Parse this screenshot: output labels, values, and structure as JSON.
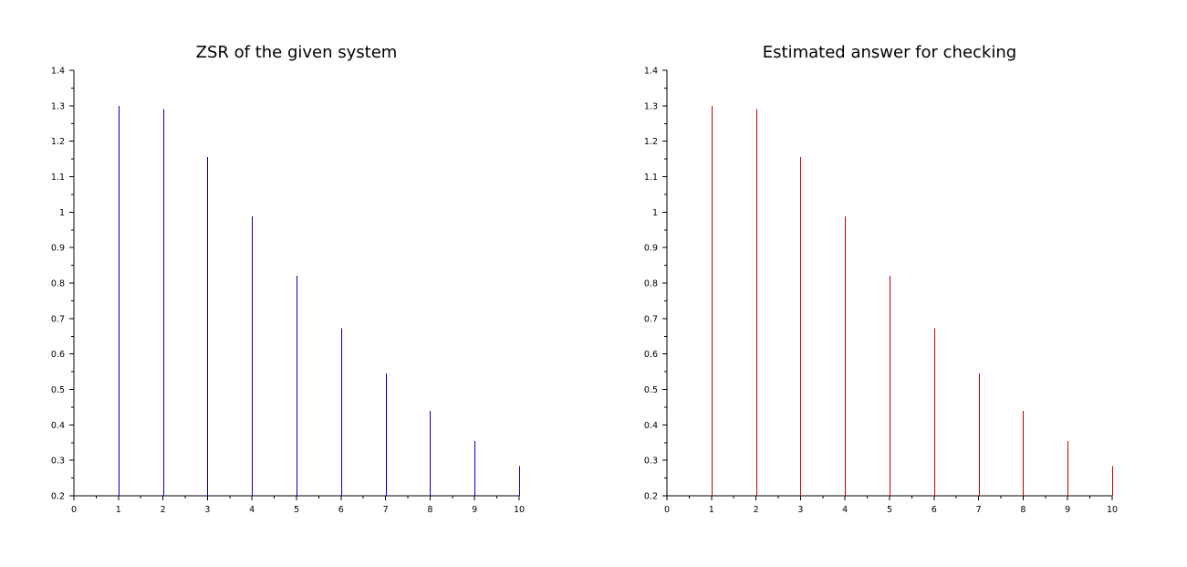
{
  "chart_data": [
    {
      "type": "stem",
      "title": "ZSR of the given system",
      "xlabel": "",
      "ylabel": "",
      "xlim": [
        0,
        10
      ],
      "ylim": [
        0.2,
        1.4
      ],
      "xticks": [
        "0",
        "1",
        "2",
        "3",
        "4",
        "5",
        "6",
        "7",
        "8",
        "9",
        "10"
      ],
      "yticks": [
        "0.2",
        "0.3",
        "0.4",
        "0.5",
        "0.6",
        "0.7",
        "0.8",
        "0.9",
        "1",
        "1.1",
        "1.2",
        "1.3",
        "1.4"
      ],
      "grid": false,
      "color": "#0000cc",
      "x": [
        1,
        2,
        3,
        4,
        5,
        6,
        7,
        8,
        9,
        10
      ],
      "values": [
        1.3,
        1.29,
        1.156,
        0.988,
        0.821,
        0.672,
        0.545,
        0.44,
        0.354,
        0.284
      ]
    },
    {
      "type": "stem",
      "title": "Estimated answer for checking",
      "xlabel": "",
      "ylabel": "",
      "xlim": [
        0,
        10
      ],
      "ylim": [
        0.2,
        1.4
      ],
      "xticks": [
        "0",
        "1",
        "2",
        "3",
        "4",
        "5",
        "6",
        "7",
        "8",
        "9",
        "10"
      ],
      "yticks": [
        "0.2",
        "0.3",
        "0.4",
        "0.5",
        "0.6",
        "0.7",
        "0.8",
        "0.9",
        "1",
        "1.1",
        "1.2",
        "1.3",
        "1.4"
      ],
      "grid": false,
      "color": "#cc0000",
      "x": [
        1,
        2,
        3,
        4,
        5,
        6,
        7,
        8,
        9,
        10
      ],
      "values": [
        1.3,
        1.29,
        1.156,
        0.988,
        0.821,
        0.672,
        0.545,
        0.44,
        0.354,
        0.284
      ]
    }
  ]
}
